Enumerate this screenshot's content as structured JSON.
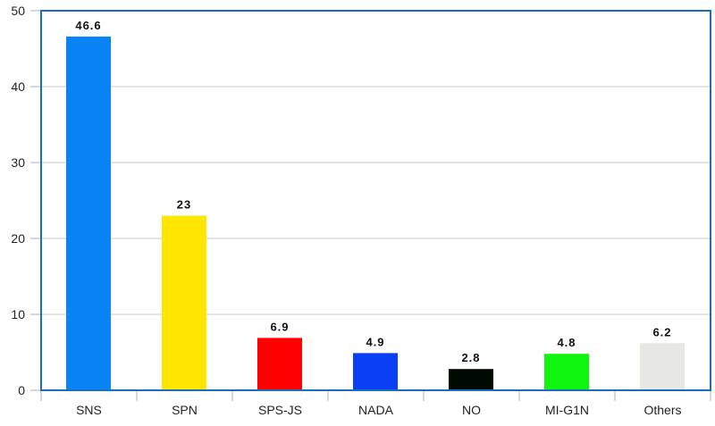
{
  "chart_data": {
    "type": "bar",
    "categories": [
      "SNS",
      "SPN",
      "SPS-JS",
      "NADA",
      "NO",
      "MI-G1N",
      "Others"
    ],
    "values": [
      46.6,
      23,
      6.9,
      4.9,
      2.8,
      4.8,
      6.2
    ],
    "data_labels": [
      "46.6",
      "23",
      "6.9",
      "4.9",
      "2.8",
      "4.8",
      "6.2"
    ],
    "colors": [
      "#0a84f5",
      "#ffe600",
      "#ff0000",
      "#0a3ff5",
      "#000a00",
      "#10f510",
      "#e8e8e2"
    ],
    "ylim": [
      0,
      50
    ],
    "yticks": [
      0,
      10,
      20,
      30,
      40,
      50
    ],
    "grid": true,
    "frame_color": "#1a6fb8",
    "title": "",
    "xlabel": "",
    "ylabel": ""
  }
}
